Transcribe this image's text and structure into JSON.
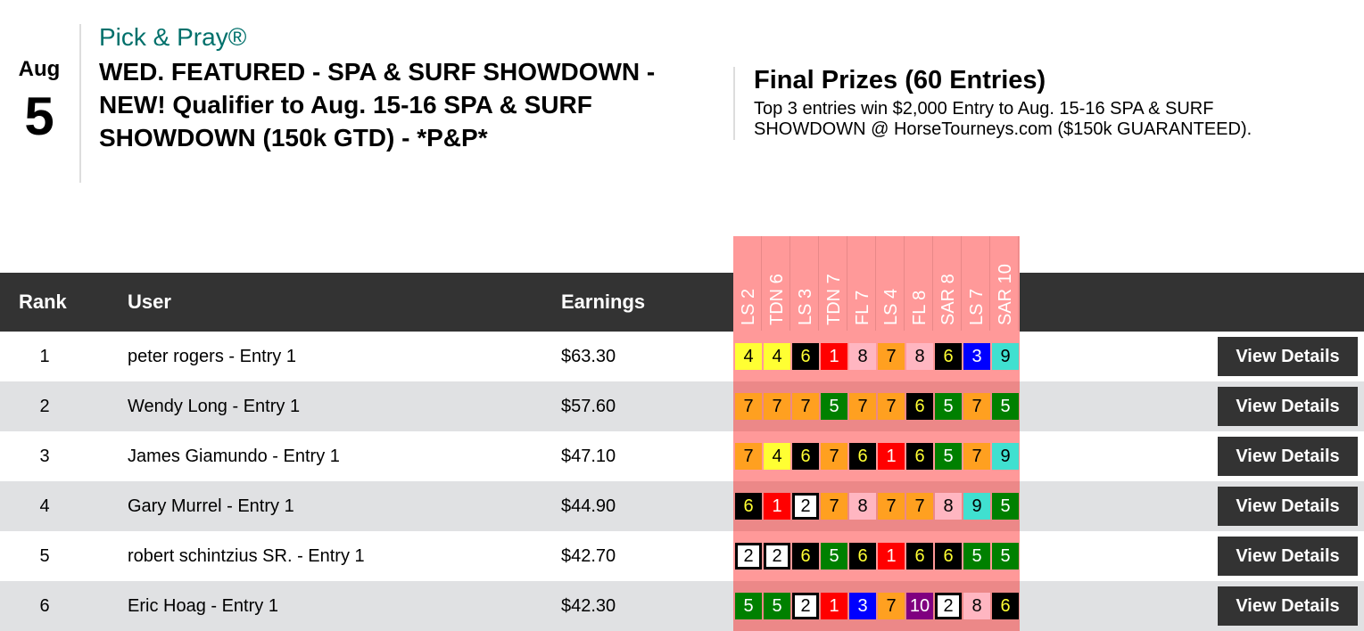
{
  "event": {
    "month": "Aug",
    "day": "5",
    "brand": "Pick & Pray®",
    "title": "WED. FEATURED - SPA & SURF SHOWDOWN - NEW! Qualifier to Aug. 15-16 SPA & SURF SHOWDOWN (150k GTD) - *P&P*"
  },
  "prizes": {
    "title": "Final Prizes (60 Entries)",
    "description": "Top 3 entries win $2,000 Entry to Aug. 15-16 SPA & SURF SHOWDOWN @ HorseTourneys.com ($150k GUARANTEED)."
  },
  "table": {
    "headers": {
      "rank": "Rank",
      "user": "User",
      "earnings": "Earnings"
    },
    "races": [
      "LS 2",
      "TDN 6",
      "LS 3",
      "TDN 7",
      "FL 7",
      "LS 4",
      "FL 8",
      "SAR 8",
      "LS 7",
      "SAR 10"
    ],
    "button_label": "View Details",
    "rows": [
      {
        "rank": "1",
        "user": "peter rogers - Entry 1",
        "earnings": "$63.30",
        "picks": [
          4,
          4,
          6,
          1,
          8,
          7,
          8,
          6,
          3,
          9
        ]
      },
      {
        "rank": "2",
        "user": "Wendy Long - Entry 1",
        "earnings": "$57.60",
        "picks": [
          7,
          7,
          7,
          5,
          7,
          7,
          6,
          5,
          7,
          5
        ]
      },
      {
        "rank": "3",
        "user": "James Giamundo - Entry 1",
        "earnings": "$47.10",
        "picks": [
          7,
          4,
          6,
          7,
          6,
          1,
          6,
          5,
          7,
          9
        ]
      },
      {
        "rank": "4",
        "user": "Gary Murrel - Entry 1",
        "earnings": "$44.90",
        "picks": [
          6,
          1,
          2,
          7,
          8,
          7,
          7,
          8,
          9,
          5
        ]
      },
      {
        "rank": "5",
        "user": "robert schintzius SR. - Entry 1",
        "earnings": "$42.70",
        "picks": [
          2,
          2,
          6,
          5,
          6,
          1,
          6,
          6,
          5,
          5
        ]
      },
      {
        "rank": "6",
        "user": "Eric Hoag - Entry 1",
        "earnings": "$42.30",
        "picks": [
          5,
          5,
          2,
          1,
          3,
          7,
          10,
          2,
          8,
          6
        ]
      }
    ]
  },
  "saddle_colors": {
    "1": [
      "#ff0000",
      "#ffffff"
    ],
    "2": [
      "#ffffff",
      "#000000"
    ],
    "3": [
      "#0000ff",
      "#ffffff"
    ],
    "4": [
      "#ffff33",
      "#000000"
    ],
    "5": [
      "#008000",
      "#ffffff"
    ],
    "6": [
      "#000000",
      "#ffff33"
    ],
    "7": [
      "#ffa020",
      "#000000"
    ],
    "8": [
      "#ffb6c1",
      "#000000"
    ],
    "9": [
      "#40e0d0",
      "#000000"
    ],
    "10": [
      "#800080",
      "#ffffff"
    ]
  }
}
